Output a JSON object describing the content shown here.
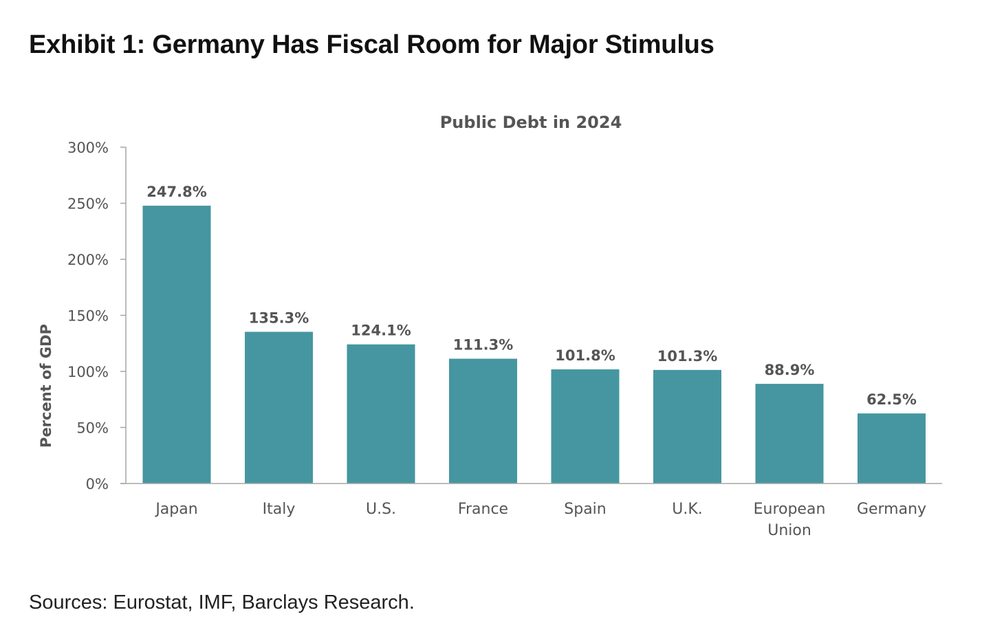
{
  "exhibit_title": "Exhibit 1: Germany Has Fiscal Room for Major Stimulus",
  "sources": "Sources: Eurostat, IMF, Barclays Research.",
  "chart_data": {
    "type": "bar",
    "title": "Public Debt in 2024",
    "xlabel": "",
    "ylabel": "Percent of GDP",
    "categories": [
      [
        "Japan"
      ],
      [
        "Italy"
      ],
      [
        "U.S."
      ],
      [
        "France"
      ],
      [
        "Spain"
      ],
      [
        "U.K."
      ],
      [
        "European",
        "Union"
      ],
      [
        "Germany"
      ]
    ],
    "values": [
      247.8,
      135.3,
      124.1,
      111.3,
      101.8,
      101.3,
      88.9,
      62.5
    ],
    "value_labels": [
      "247.8%",
      "135.3%",
      "124.1%",
      "111.3%",
      "101.8%",
      "101.3%",
      "88.9%",
      "62.5%"
    ],
    "ylim": [
      0,
      300
    ],
    "yticks": [
      0,
      50,
      100,
      150,
      200,
      250,
      300
    ],
    "ytick_labels": [
      "0%",
      "50%",
      "100%",
      "150%",
      "200%",
      "250%",
      "300%"
    ],
    "grid": false,
    "legend": "none",
    "bar_color": "#4596a0",
    "axis_color": "#a6a6a6",
    "text_color": "#555555"
  }
}
